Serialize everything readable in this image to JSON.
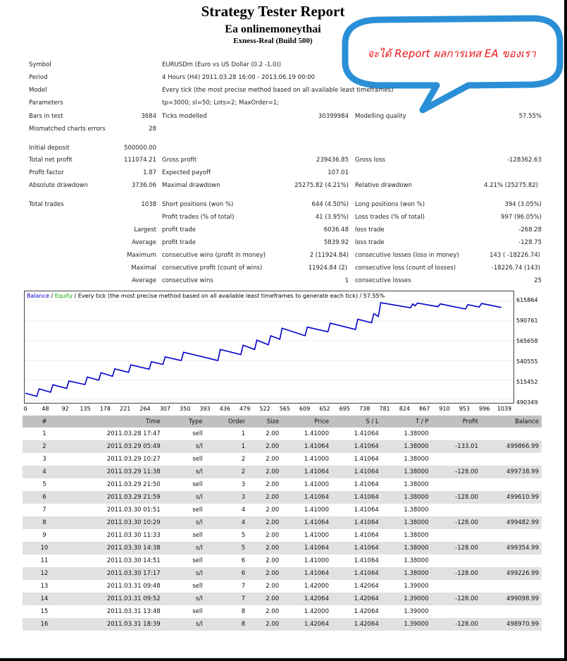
{
  "header": {
    "title": "Strategy Tester Report",
    "ea_name": "Ea onlinemoneythai",
    "server": "Exness-Real (Build 500)"
  },
  "callout": {
    "text": "จะได้ Report ผลการเทส EA ของเรา",
    "text_color": "#e8141a",
    "bubble_color": "#2a8fd6"
  },
  "info": [
    {
      "label": "Symbol",
      "value": "EURUSDm (Euro vs US Dollar (0.2 -1.0))"
    },
    {
      "label": "Period",
      "value": "4 Hours (H4)  2011.03.28 16:00  - 2013.06.19 00:00"
    },
    {
      "label": "Model",
      "value": "Every tick (the most precise method based on all available least timeframes)"
    },
    {
      "label": "Parameters",
      "value": "tp=3000; sl=50; Lots=2; MaxOrder=1;"
    }
  ],
  "stats": {
    "bars_label": "Bars in test",
    "bars": "3684",
    "ticks_label": "Ticks modelled",
    "ticks": "30399984",
    "quality_label": "Modelling quality",
    "quality": "57.55%",
    "mismatch_label": "Mismatched charts errors",
    "mismatch": "28",
    "deposit_label": "Initial deposit",
    "deposit": "500000.00",
    "netprofit_label": "Total net profit",
    "netprofit": "111074.21",
    "grossprofit_label": "Gross profit",
    "grossprofit": "239436.85",
    "grossloss_label": "Gross loss",
    "grossloss": "-128362.63",
    "pf_label": "Profit factor",
    "pf": "1.87",
    "payoff_label": "Expected payoff",
    "payoff": "107.01",
    "absdd_label": "Absolute drawdown",
    "absdd": "3736.06",
    "maxdd_label": "Maximal drawdown",
    "maxdd": "25275.82 (4.21%)",
    "reldd_label": "Relative drawdown",
    "reldd": "4.21% (25275.82)",
    "trades_label": "Total trades",
    "trades": "1038",
    "short_label": "Short positions (won %)",
    "short": "644 (4.50%)",
    "long_label": "Long positions (won %)",
    "long": "394 (3.05%)",
    "profit_trades_label": "Profit trades (% of total)",
    "profit_trades": "41 (3.95%)",
    "loss_trades_label": "Loss trades (% of total)",
    "loss_trades": "997 (96.05%)",
    "largest_label": "Largest",
    "lg_profit_label": "profit trade",
    "lg_profit": "6036.48",
    "lg_loss_label": "loss trade",
    "lg_loss": "-268.28",
    "average_label": "Average",
    "av_profit_label": "profit trade",
    "av_profit": "5839.92",
    "av_loss_label": "loss trade",
    "av_loss": "-128.75",
    "maximum_label": "Maximum",
    "mx_wins_label": "consecutive wins (profit in money)",
    "mx_wins": "2 (11924.84)",
    "mx_losses_label": "consecutive losses (loss in money)",
    "mx_losses": "143 ( -18226.74)",
    "maximal_label": "Maximal",
    "ml_profit_label": "consecutive profit (count of wins)",
    "ml_profit": "11924.84 (2)",
    "ml_loss_label": "consecutive loss (count of losses)",
    "ml_loss": "-18226.74 (143)",
    "average2_label": "Average",
    "avc_wins_label": "consecutive wins",
    "avc_wins": "1",
    "avc_losses_label": "consecutive losses",
    "avc_losses": "25"
  },
  "chart_data": {
    "type": "line",
    "caption_balance": "Balance",
    "caption_sep": " / ",
    "caption_equity": "Equity",
    "caption_rest": " / Every tick (the most precise method based on all available least timeframes to generate each tick) / 57.55%",
    "balance_color": "#0000cc",
    "equity_color": "#00aa00",
    "y_ticks": [
      "615864",
      "590761",
      "565658",
      "540555",
      "515452",
      "490349"
    ],
    "x_ticks": [
      "0",
      "48",
      "92",
      "135",
      "178",
      "221",
      "264",
      "307",
      "350",
      "393",
      "436",
      "479",
      "522",
      "565",
      "609",
      "652",
      "695",
      "738",
      "781",
      "824",
      "867",
      "910",
      "953",
      "996",
      "1039"
    ],
    "ylim": [
      490349,
      615864
    ],
    "xlim": [
      0,
      1060
    ],
    "balance_x": [
      0,
      25,
      30,
      55,
      60,
      90,
      95,
      130,
      135,
      160,
      165,
      190,
      195,
      225,
      230,
      270,
      275,
      300,
      305,
      340,
      345,
      420,
      425,
      470,
      475,
      500,
      505,
      530,
      535,
      555,
      560,
      610,
      615,
      660,
      665,
      720,
      725,
      755,
      760,
      770,
      775,
      840,
      845,
      850,
      855,
      900,
      905,
      960,
      965,
      990,
      995,
      1038
    ],
    "balance_y": [
      498970,
      495000,
      504500,
      500200,
      509700,
      505000,
      514500,
      510000,
      519500,
      515500,
      525000,
      520500,
      530000,
      525500,
      535000,
      529500,
      539000,
      535500,
      545000,
      540500,
      551000,
      540500,
      554500,
      548000,
      560000,
      554500,
      566500,
      560500,
      572000,
      567500,
      581500,
      572000,
      583000,
      577000,
      588000,
      580000,
      593000,
      588500,
      600000,
      596500,
      614000,
      607500,
      612500,
      610000,
      613500,
      609000,
      612500,
      606000,
      611500,
      608500,
      613000,
      608000
    ]
  },
  "trades_table": {
    "headers": [
      "#",
      "Time",
      "Type",
      "Order",
      "Size",
      "Price",
      "S / L",
      "T / P",
      "Profit",
      "Balance"
    ],
    "rows": [
      [
        "1",
        "2011.03.28 17:47",
        "sell",
        "1",
        "2.00",
        "1.41000",
        "1.41064",
        "1.38000",
        "",
        ""
      ],
      [
        "2",
        "2011.03.29 05:49",
        "s/l",
        "1",
        "2.00",
        "1.41064",
        "1.41064",
        "1.38000",
        "-133.01",
        "499866.99"
      ],
      [
        "3",
        "2011.03.29 10:27",
        "sell",
        "2",
        "2.00",
        "1.41000",
        "1.41064",
        "1.38000",
        "",
        ""
      ],
      [
        "4",
        "2011.03.29 11:38",
        "s/l",
        "2",
        "2.00",
        "1.41064",
        "1.41064",
        "1.38000",
        "-128.00",
        "499738.99"
      ],
      [
        "5",
        "2011.03.29 21:50",
        "sell",
        "3",
        "2.00",
        "1.41000",
        "1.41064",
        "1.38000",
        "",
        ""
      ],
      [
        "6",
        "2011.03.29 21:59",
        "s/l",
        "3",
        "2.00",
        "1.41064",
        "1.41064",
        "1.38000",
        "-128.00",
        "499610.99"
      ],
      [
        "7",
        "2011.03.30 01:51",
        "sell",
        "4",
        "2.00",
        "1.41000",
        "1.41064",
        "1.38000",
        "",
        ""
      ],
      [
        "8",
        "2011.03.30 10:29",
        "s/l",
        "4",
        "2.00",
        "1.41064",
        "1.41064",
        "1.38000",
        "-128.00",
        "499482.99"
      ],
      [
        "9",
        "2011.03.30 11:33",
        "sell",
        "5",
        "2.00",
        "1.41000",
        "1.41064",
        "1.38000",
        "",
        ""
      ],
      [
        "10",
        "2011.03.30 14:38",
        "s/l",
        "5",
        "2.00",
        "1.41064",
        "1.41064",
        "1.38000",
        "-128.00",
        "499354.99"
      ],
      [
        "11",
        "2011.03.30 14:51",
        "sell",
        "6",
        "2.00",
        "1.41000",
        "1.41064",
        "1.38000",
        "",
        ""
      ],
      [
        "12",
        "2011.03.30 17:17",
        "s/l",
        "6",
        "2.00",
        "1.41064",
        "1.41064",
        "1.38000",
        "-128.00",
        "499226.99"
      ],
      [
        "13",
        "2011.03.31 09:48",
        "sell",
        "7",
        "2.00",
        "1.42000",
        "1.42064",
        "1.39000",
        "",
        ""
      ],
      [
        "14",
        "2011.03.31 09:52",
        "s/l",
        "7",
        "2.00",
        "1.42064",
        "1.42064",
        "1.39000",
        "-128.00",
        "499098.99"
      ],
      [
        "15",
        "2011.03.31 13:48",
        "sell",
        "8",
        "2.00",
        "1.42000",
        "1.42064",
        "1.39000",
        "",
        ""
      ],
      [
        "16",
        "2011.03.31 18:39",
        "s/l",
        "8",
        "2.00",
        "1.42064",
        "1.42064",
        "1.39000",
        "-128.00",
        "498970.99"
      ]
    ]
  }
}
